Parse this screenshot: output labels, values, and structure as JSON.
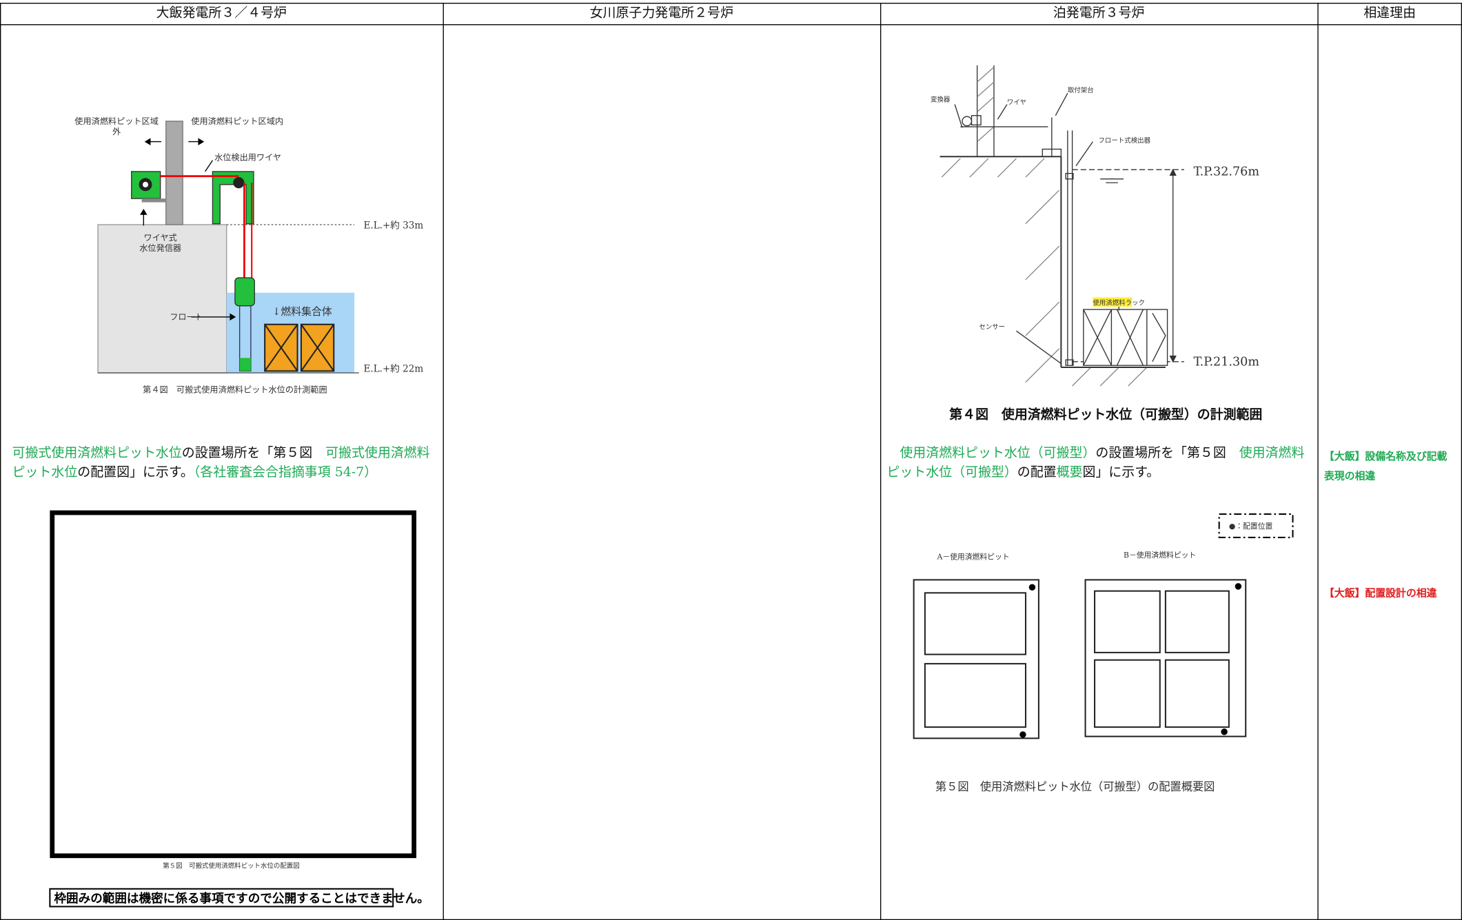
{
  "header": [
    "大飯発電所３／４号炉",
    "女川原子力発電所２号炉",
    "泊発電所３号炉",
    "相違理由"
  ],
  "col1": {
    "fig4": {
      "labels": [
        "使用済燃料ピット区域",
        "外",
        "使用済燃料ピット区域内",
        "水位検出用ワイヤ",
        "E.L.+約 33m",
        "ワイヤ式",
        "水位発信器",
        "フロート",
        "↓燃料集合体",
        "E.L.+約 22m"
      ],
      "caption": "第４図　可搬式使用済燃料ピット水位の計測範囲"
    },
    "paragraph": [
      {
        "text": "可搬式使用済燃料ピット水位",
        "color": "#1faa55"
      },
      {
        "text": "の設置場所を「第５図　"
      },
      {
        "text": "可搬式使用済燃料ピット水位",
        "color": "#1faa55"
      },
      {
        "text": "の配置図」に示す。"
      },
      {
        "text": "（各社審査会合指摘事項 54-7）",
        "color": "#1faa55"
      }
    ],
    "fig5_caption": "第５図　可搬式使用済燃料ピット水位の配置図",
    "note": "枠囲みの範囲は機密に係る事項ですので公開することはできません。"
  },
  "col3": {
    "fig4": {
      "labels": [
        "変換器",
        "ワイヤ",
        "取付架台",
        "フロート式検出器",
        "T.P.32.76m",
        "使用済燃料ラック",
        "センサー",
        "T.P.21.30m"
      ],
      "caption": "第４図　使用済燃料ピット水位（可搬型）の計測範囲"
    },
    "paragraph": [
      {
        "text": "使用済燃料ピット水位（可搬型）",
        "color": "#1faa55"
      },
      {
        "text": "の設置場所を「第５図　"
      },
      {
        "text": "使用済燃料ピット水位（可搬型）",
        "color": "#1faa55"
      },
      {
        "text": "の配置"
      },
      {
        "text": "概要",
        "color": "#1faa55"
      },
      {
        "text": "図」に示す。"
      }
    ],
    "fig5": {
      "legend": "●：配置位置",
      "pit_a": "A－使用済燃料ピット",
      "pit_b": "B－使用済燃料ピット",
      "caption": "第５図　使用済燃料ピット水位（可搬型）の配置概要図"
    }
  },
  "col4": {
    "reasons": [
      {
        "text": "【大飯】設備名称及び記載表現の相違",
        "color": "#1faa55"
      },
      {
        "text": "【大飯】配置設計の相違",
        "color": "#e02020"
      }
    ]
  }
}
